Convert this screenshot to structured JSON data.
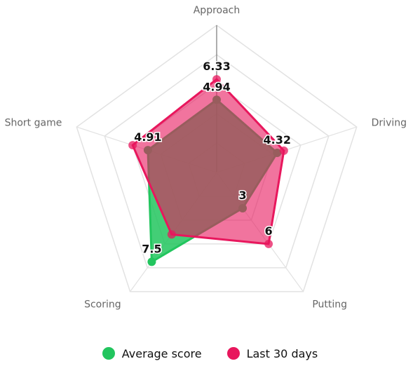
{
  "chart_data": {
    "type": "radar",
    "axes": [
      "Approach",
      "Driving",
      "Putting",
      "Scoring",
      "Short game"
    ],
    "range": [
      0,
      10
    ],
    "grid": "pentagon",
    "grid_levels": 5,
    "series": [
      {
        "name": "Average score",
        "color": "#22c55e",
        "values": [
          4.94,
          4.32,
          3,
          7.5,
          4.91
        ],
        "labels": [
          "4.94",
          "4.32",
          "3",
          "7.5",
          "4.91"
        ]
      },
      {
        "name": "Last 30 days",
        "color": "#e8175d",
        "values": [
          6.33,
          4.8,
          6,
          5.2,
          6.0
        ],
        "labels": [
          "6.33",
          "",
          "6",
          "",
          ""
        ]
      }
    ],
    "legend_position": "bottom"
  }
}
